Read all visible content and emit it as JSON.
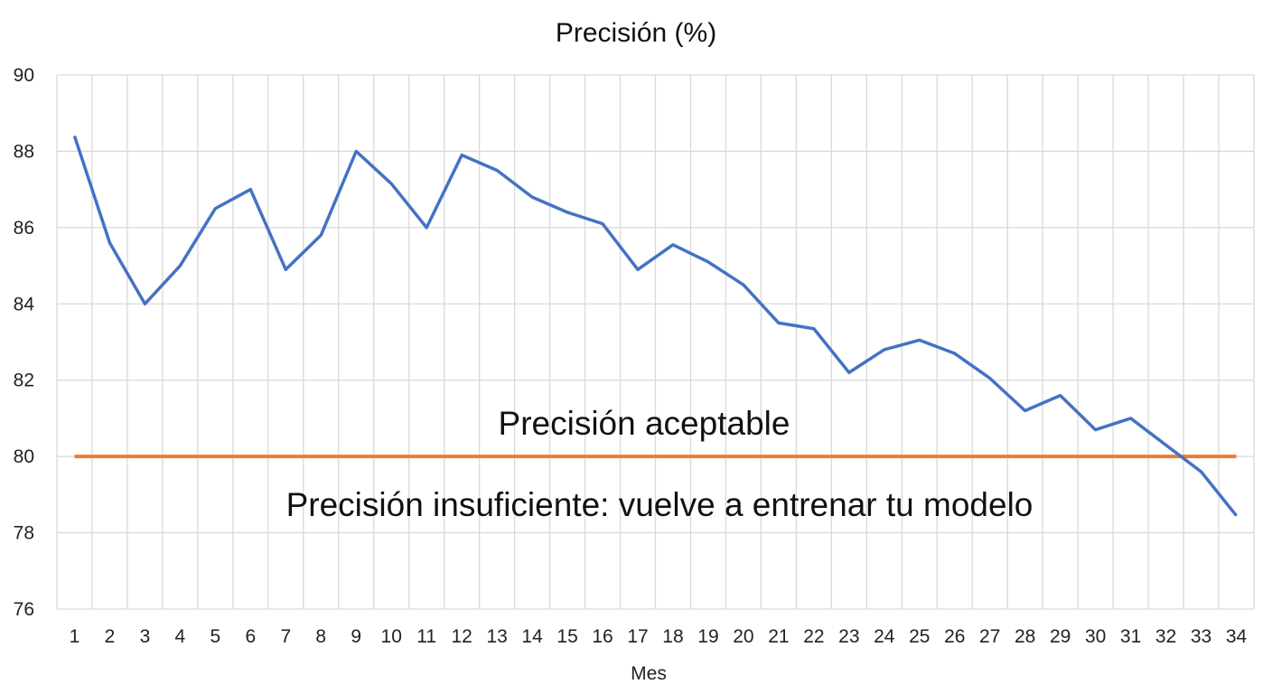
{
  "chart_data": {
    "type": "line",
    "title": "Precisión (%)",
    "xlabel": "Mes",
    "ylabel": "",
    "ylim": [
      76,
      90
    ],
    "yticks": [
      76,
      78,
      80,
      82,
      84,
      86,
      88,
      90
    ],
    "grid": true,
    "categories": [
      "1",
      "2",
      "3",
      "4",
      "5",
      "6",
      "7",
      "8",
      "9",
      "10",
      "11",
      "12",
      "13",
      "14",
      "15",
      "16",
      "17",
      "18",
      "19",
      "20",
      "21",
      "22",
      "23",
      "24",
      "25",
      "26",
      "27",
      "28",
      "29",
      "30",
      "31",
      "32",
      "33",
      "34"
    ],
    "series": [
      {
        "values": [
          88.4,
          85.6,
          84.0,
          85.0,
          86.5,
          87.0,
          84.9,
          85.8,
          88.0,
          87.15,
          86.0,
          87.9,
          87.5,
          86.8,
          86.4,
          86.1,
          84.9,
          85.55,
          85.1,
          84.5,
          83.5,
          83.35,
          82.2,
          82.8,
          83.05,
          82.7,
          82.05,
          81.2,
          81.6,
          80.7,
          81.0,
          80.3,
          79.6,
          78.45
        ],
        "color": "#4472C4"
      }
    ],
    "threshold": {
      "value": 80,
      "color": "#ED7D31"
    },
    "annotations": {
      "above": "Precisión aceptable",
      "below": "Precisión insuficiente: vuelve a entrenar tu modelo"
    }
  }
}
